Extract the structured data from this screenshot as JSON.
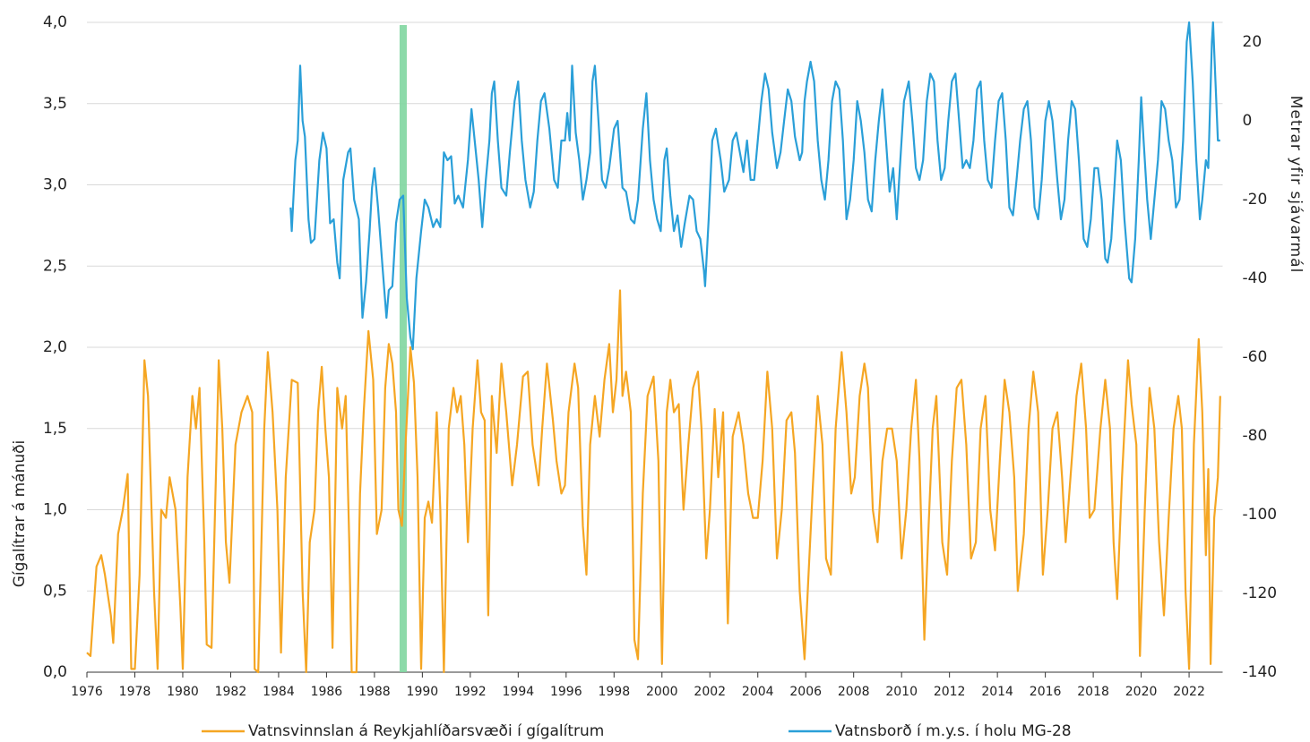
{
  "chart_data": {
    "type": "line",
    "highlight": {
      "x": [
        1989.05,
        1989.35
      ],
      "color": "#7fd6a0"
    },
    "xlim": [
      1976,
      2023.4
    ],
    "xticks": [
      1976,
      1978,
      1980,
      1982,
      1984,
      1986,
      1988,
      1990,
      1992,
      1994,
      1996,
      1998,
      2000,
      2002,
      2004,
      2006,
      2008,
      2010,
      2012,
      2014,
      2016,
      2018,
      2020,
      2022
    ],
    "ylim": [
      0,
      4
    ],
    "yticks": [
      {
        "value": 0,
        "label": "0,0"
      },
      {
        "value": 0.5,
        "label": "0,5"
      },
      {
        "value": 1,
        "label": "1,0"
      },
      {
        "value": 1.5,
        "label": "1,5"
      },
      {
        "value": 2,
        "label": "2,0"
      },
      {
        "value": 2.5,
        "label": "2,5"
      },
      {
        "value": 3,
        "label": "3,0"
      },
      {
        "value": 3.5,
        "label": "3,5"
      },
      {
        "value": 4,
        "label": "4,0"
      }
    ],
    "ylabel": "Gígalítrar á mánuði",
    "y2lim": [
      -140,
      25
    ],
    "y2ticks": [
      -140,
      -120,
      -100,
      -80,
      -60,
      -40,
      -20,
      0,
      20
    ],
    "y2label": "Metrar yfir sjávarmál",
    "grid": true,
    "legend": "bottom",
    "series": [
      {
        "name": "Vatnsvinnslan á Reykjahlíðarsvæði í gígalítrum",
        "color": "#f5a623",
        "x": [
          1976.0,
          1976.15,
          1976.4,
          1976.6,
          1976.75,
          1977.0,
          1977.1,
          1977.3,
          1977.5,
          1977.7,
          1977.85,
          1978.0,
          1978.2,
          1978.4,
          1978.55,
          1978.8,
          1978.95,
          1979.1,
          1979.3,
          1979.45,
          1979.7,
          1979.9,
          1980.0,
          1980.2,
          1980.4,
          1980.55,
          1980.7,
          1980.9,
          1981.0,
          1981.2,
          1981.4,
          1981.5,
          1981.65,
          1981.8,
          1981.95,
          1982.2,
          1982.45,
          1982.7,
          1982.9,
          1983.0,
          1983.15,
          1983.4,
          1983.55,
          1983.75,
          1983.95,
          1984.1,
          1984.3,
          1984.55,
          1984.8,
          1985.0,
          1985.15,
          1985.3,
          1985.5,
          1985.65,
          1985.8,
          1985.95,
          1986.1,
          1986.25,
          1986.45,
          1986.65,
          1986.8,
          1986.95,
          1987.05,
          1987.25,
          1987.4,
          1987.55,
          1987.75,
          1987.95,
          1988.1,
          1988.3,
          1988.45,
          1988.6,
          1988.75,
          1988.9,
          1989.0,
          1989.15,
          1989.3,
          1989.5,
          1989.65,
          1989.8,
          1989.95,
          1990.1,
          1990.25,
          1990.4,
          1990.6,
          1990.75,
          1990.9,
          1991.1,
          1991.3,
          1991.45,
          1991.6,
          1991.75,
          1991.9,
          1992.1,
          1992.3,
          1992.45,
          1992.6,
          1992.75,
          1992.9,
          1993.1,
          1993.3,
          1993.5,
          1993.75,
          1993.95,
          1994.2,
          1994.4,
          1994.6,
          1994.85,
          1995.0,
          1995.2,
          1995.45,
          1995.6,
          1995.8,
          1995.95,
          1996.1,
          1996.35,
          1996.5,
          1996.7,
          1996.85,
          1997.0,
          1997.2,
          1997.4,
          1997.6,
          1997.8,
          1997.95,
          1998.1,
          1998.25,
          1998.35,
          1998.5,
          1998.7,
          1998.85,
          1999.0,
          1999.2,
          1999.4,
          1999.65,
          1999.85,
          2000.0,
          2000.2,
          2000.35,
          2000.5,
          2000.7,
          2000.9,
          2001.1,
          2001.3,
          2001.5,
          2001.65,
          2001.85,
          2002.0,
          2002.2,
          2002.35,
          2002.55,
          2002.75,
          2002.95,
          2003.2,
          2003.4,
          2003.6,
          2003.8,
          2004.0,
          2004.2,
          2004.4,
          2004.6,
          2004.8,
          2005.0,
          2005.2,
          2005.4,
          2005.55,
          2005.75,
          2005.95,
          2006.1,
          2006.3,
          2006.5,
          2006.7,
          2006.85,
          2007.05,
          2007.25,
          2007.5,
          2007.7,
          2007.9,
          2008.05,
          2008.25,
          2008.45,
          2008.6,
          2008.8,
          2009.0,
          2009.2,
          2009.4,
          2009.6,
          2009.8,
          2010.0,
          2010.2,
          2010.4,
          2010.6,
          2010.75,
          2010.95,
          2011.1,
          2011.3,
          2011.45,
          2011.7,
          2011.9,
          2012.1,
          2012.3,
          2012.5,
          2012.7,
          2012.9,
          2013.1,
          2013.3,
          2013.5,
          2013.7,
          2013.9,
          2014.1,
          2014.3,
          2014.5,
          2014.7,
          2014.85,
          2015.1,
          2015.3,
          2015.5,
          2015.7,
          2015.9,
          2016.1,
          2016.3,
          2016.5,
          2016.7,
          2016.85,
          2017.05,
          2017.3,
          2017.5,
          2017.7,
          2017.85,
          2018.05,
          2018.3,
          2018.5,
          2018.7,
          2018.85,
          2019.0,
          2019.2,
          2019.45,
          2019.6,
          2019.8,
          2019.95,
          2020.15,
          2020.35,
          2020.55,
          2020.75,
          2020.95,
          2021.15,
          2021.35,
          2021.55,
          2021.7,
          2021.85,
          2022.0,
          2022.2,
          2022.4,
          2022.55,
          2022.7,
          2022.8,
          2022.9,
          2023.05,
          2023.2,
          2023.3
        ],
        "values": [
          0.12,
          0.1,
          0.65,
          0.72,
          0.6,
          0.35,
          0.18,
          0.85,
          1.0,
          1.22,
          0.02,
          0.02,
          0.6,
          1.92,
          1.7,
          0.5,
          0.02,
          1.0,
          0.95,
          1.2,
          1.0,
          0.4,
          0.02,
          1.2,
          1.7,
          1.5,
          1.75,
          0.8,
          0.17,
          0.15,
          1.3,
          1.92,
          1.5,
          0.8,
          0.55,
          1.4,
          1.6,
          1.7,
          1.6,
          0.02,
          0.0,
          1.5,
          1.97,
          1.6,
          1.0,
          0.12,
          1.2,
          1.8,
          1.78,
          0.5,
          0.0,
          0.8,
          1.0,
          1.6,
          1.88,
          1.5,
          1.2,
          0.15,
          1.75,
          1.5,
          1.7,
          0.8,
          0.0,
          0.0,
          1.1,
          1.6,
          2.1,
          1.8,
          0.85,
          1.0,
          1.75,
          2.02,
          1.9,
          1.6,
          1.0,
          0.9,
          1.4,
          2.0,
          1.78,
          1.2,
          0.02,
          0.95,
          1.05,
          0.92,
          1.6,
          1.0,
          0.0,
          1.5,
          1.75,
          1.6,
          1.7,
          1.4,
          0.8,
          1.5,
          1.92,
          1.6,
          1.55,
          0.35,
          1.7,
          1.35,
          1.9,
          1.6,
          1.15,
          1.4,
          1.82,
          1.85,
          1.4,
          1.15,
          1.5,
          1.9,
          1.55,
          1.3,
          1.1,
          1.15,
          1.6,
          1.9,
          1.75,
          0.9,
          0.6,
          1.4,
          1.7,
          1.45,
          1.8,
          2.02,
          1.6,
          1.8,
          2.35,
          1.7,
          1.85,
          1.6,
          0.2,
          0.08,
          1.1,
          1.7,
          1.82,
          1.3,
          0.05,
          1.6,
          1.8,
          1.6,
          1.65,
          1.0,
          1.4,
          1.75,
          1.85,
          1.5,
          0.7,
          1.0,
          1.62,
          1.2,
          1.6,
          0.3,
          1.45,
          1.6,
          1.4,
          1.1,
          0.95,
          0.95,
          1.3,
          1.85,
          1.5,
          0.7,
          1.0,
          1.55,
          1.6,
          1.35,
          0.5,
          0.08,
          0.55,
          1.15,
          1.7,
          1.4,
          0.7,
          0.6,
          1.5,
          1.97,
          1.6,
          1.1,
          1.2,
          1.7,
          1.9,
          1.75,
          1.0,
          0.8,
          1.3,
          1.5,
          1.5,
          1.3,
          0.7,
          1.0,
          1.5,
          1.8,
          1.3,
          0.2,
          0.8,
          1.5,
          1.7,
          0.8,
          0.6,
          1.3,
          1.75,
          1.8,
          1.4,
          0.7,
          0.8,
          1.5,
          1.7,
          1.0,
          0.75,
          1.3,
          1.8,
          1.6,
          1.2,
          0.5,
          0.85,
          1.5,
          1.85,
          1.6,
          0.6,
          1.0,
          1.5,
          1.6,
          1.2,
          0.8,
          1.2,
          1.7,
          1.9,
          1.5,
          0.95,
          1.0,
          1.5,
          1.8,
          1.5,
          0.8,
          0.45,
          1.2,
          1.92,
          1.65,
          1.4,
          0.1,
          1.0,
          1.75,
          1.5,
          0.8,
          0.35,
          0.95,
          1.5,
          1.7,
          1.5,
          0.5,
          0.02,
          1.4,
          2.05,
          1.6,
          0.72,
          1.25,
          0.05,
          0.95,
          1.2,
          1.7
        ]
      },
      {
        "name": "Vatnsborð í m.y.s. í holu MG-28",
        "color": "#2a9fd8",
        "axis": "y2",
        "x": [
          1984.5,
          1984.55,
          1984.7,
          1984.8,
          1984.9,
          1985.0,
          1985.1,
          1985.25,
          1985.35,
          1985.5,
          1985.7,
          1985.85,
          1986.0,
          1986.15,
          1986.3,
          1986.45,
          1986.55,
          1986.7,
          1986.9,
          1987.0,
          1987.15,
          1987.35,
          1987.5,
          1987.65,
          1987.8,
          1987.9,
          1988.0,
          1988.15,
          1988.35,
          1988.5,
          1988.6,
          1988.75,
          1988.9,
          1989.05,
          1989.2,
          1989.35,
          1989.5,
          1989.6,
          1989.75,
          1989.95,
          1990.1,
          1990.25,
          1990.45,
          1990.6,
          1990.75,
          1990.9,
          1991.05,
          1991.2,
          1991.35,
          1991.5,
          1991.7,
          1991.9,
          1992.05,
          1992.2,
          1992.35,
          1992.5,
          1992.65,
          1992.8,
          1992.9,
          1993.0,
          1993.15,
          1993.3,
          1993.5,
          1993.65,
          1993.85,
          1994.0,
          1994.15,
          1994.3,
          1994.5,
          1994.65,
          1994.8,
          1994.95,
          1995.1,
          1995.3,
          1995.5,
          1995.65,
          1995.8,
          1995.95,
          1996.05,
          1996.15,
          1996.25,
          1996.4,
          1996.55,
          1996.7,
          1996.85,
          1997.0,
          1997.1,
          1997.2,
          1997.35,
          1997.5,
          1997.65,
          1997.8,
          1998.0,
          1998.15,
          1998.35,
          1998.5,
          1998.7,
          1998.85,
          1999.0,
          1999.2,
          1999.35,
          1999.5,
          1999.65,
          1999.8,
          1999.95,
          2000.1,
          2000.2,
          2000.35,
          2000.5,
          2000.65,
          2000.8,
          2000.95,
          2001.15,
          2001.3,
          2001.45,
          2001.6,
          2001.75,
          2001.8,
          2001.95,
          2002.1,
          2002.25,
          2002.45,
          2002.6,
          2002.8,
          2002.95,
          2003.1,
          2003.25,
          2003.4,
          2003.55,
          2003.7,
          2003.85,
          2004.0,
          2004.15,
          2004.3,
          2004.45,
          2004.6,
          2004.8,
          2004.95,
          2005.1,
          2005.25,
          2005.4,
          2005.55,
          2005.75,
          2005.85,
          2005.95,
          2006.05,
          2006.2,
          2006.35,
          2006.5,
          2006.65,
          2006.8,
          2006.95,
          2007.1,
          2007.25,
          2007.4,
          2007.55,
          2007.7,
          2007.85,
          2008.0,
          2008.15,
          2008.3,
          2008.45,
          2008.6,
          2008.75,
          2008.9,
          2009.05,
          2009.2,
          2009.35,
          2009.5,
          2009.65,
          2009.8,
          2009.95,
          2010.1,
          2010.3,
          2010.45,
          2010.6,
          2010.75,
          2010.9,
          2011.05,
          2011.2,
          2011.35,
          2011.5,
          2011.65,
          2011.8,
          2011.95,
          2012.1,
          2012.25,
          2012.4,
          2012.55,
          2012.7,
          2012.85,
          2013.0,
          2013.15,
          2013.3,
          2013.45,
          2013.6,
          2013.75,
          2013.9,
          2014.05,
          2014.2,
          2014.35,
          2014.5,
          2014.65,
          2014.8,
          2014.95,
          2015.1,
          2015.25,
          2015.4,
          2015.55,
          2015.7,
          2015.85,
          2016.0,
          2016.15,
          2016.3,
          2016.5,
          2016.65,
          2016.8,
          2016.95,
          2017.1,
          2017.25,
          2017.4,
          2017.6,
          2017.75,
          2017.9,
          2018.05,
          2018.2,
          2018.35,
          2018.5,
          2018.6,
          2018.75,
          2018.9,
          2019.0,
          2019.15,
          2019.3,
          2019.5,
          2019.6,
          2019.75,
          2019.9,
          2020.0,
          2020.1,
          2020.25,
          2020.4,
          2020.55,
          2020.7,
          2020.85,
          2021.0,
          2021.15,
          2021.3,
          2021.45,
          2021.6,
          2021.75,
          2021.9,
          2022.0,
          2022.15,
          2022.3,
          2022.45,
          2022.55,
          2022.7,
          2022.8,
          2022.95,
          2023.0,
          2023.1,
          2023.2,
          2023.3
        ],
        "values": [
          -22,
          -28,
          -10,
          -5,
          14,
          0,
          -4,
          -25,
          -31,
          -30,
          -10,
          -3,
          -7,
          -26,
          -25,
          -36,
          -40,
          -15,
          -8,
          -7,
          -20,
          -25,
          -50,
          -41,
          -28,
          -17,
          -12,
          -22,
          -38,
          -50,
          -43,
          -42,
          -26,
          -20,
          -19,
          -45,
          -55,
          -58,
          -40,
          -28,
          -20,
          -22,
          -27,
          -25,
          -27,
          -8,
          -10,
          -9,
          -21,
          -19,
          -22,
          -10,
          3,
          -6,
          -15,
          -27,
          -15,
          -5,
          7,
          10,
          -5,
          -17,
          -19,
          -8,
          5,
          10,
          -5,
          -15,
          -22,
          -18,
          -5,
          5,
          7,
          -2,
          -15,
          -17,
          -5,
          -5,
          2,
          -5,
          14,
          -3,
          -10,
          -20,
          -15,
          -8,
          10,
          14,
          0,
          -15,
          -17,
          -12,
          -2,
          0,
          -17,
          -18,
          -25,
          -26,
          -20,
          -2,
          7,
          -10,
          -20,
          -25,
          -28,
          -10,
          -7,
          -19,
          -28,
          -24,
          -32,
          -26,
          -19,
          -20,
          -28,
          -30,
          -38,
          -42,
          -25,
          -5,
          -2,
          -10,
          -18,
          -15,
          -5,
          -3,
          -8,
          -13,
          -5,
          -15,
          -15,
          -5,
          5,
          12,
          8,
          -3,
          -12,
          -8,
          0,
          8,
          5,
          -4,
          -10,
          -8,
          5,
          10,
          15,
          10,
          -5,
          -15,
          -20,
          -10,
          5,
          10,
          8,
          -5,
          -25,
          -20,
          -10,
          5,
          0,
          -8,
          -20,
          -23,
          -10,
          0,
          8,
          -5,
          -18,
          -12,
          -25,
          -10,
          5,
          10,
          0,
          -12,
          -15,
          -10,
          5,
          12,
          10,
          -5,
          -15,
          -12,
          0,
          10,
          12,
          0,
          -12,
          -10,
          -12,
          -5,
          8,
          10,
          -5,
          -15,
          -17,
          -5,
          5,
          7,
          -5,
          -22,
          -24,
          -15,
          -5,
          3,
          5,
          -5,
          -22,
          -25,
          -15,
          0,
          5,
          0,
          -15,
          -25,
          -20,
          -5,
          5,
          3,
          -10,
          -30,
          -32,
          -25,
          -12,
          -12,
          -20,
          -35,
          -36,
          -30,
          -15,
          -5,
          -10,
          -25,
          -40,
          -41,
          -30,
          -10,
          6,
          -5,
          -20,
          -30,
          -20,
          -10,
          5,
          3,
          -5,
          -10,
          -22,
          -20,
          -5,
          20,
          25,
          10,
          -10,
          -25,
          -20,
          -10,
          -12,
          20,
          25,
          10,
          -5,
          -5
        ]
      }
    ]
  }
}
